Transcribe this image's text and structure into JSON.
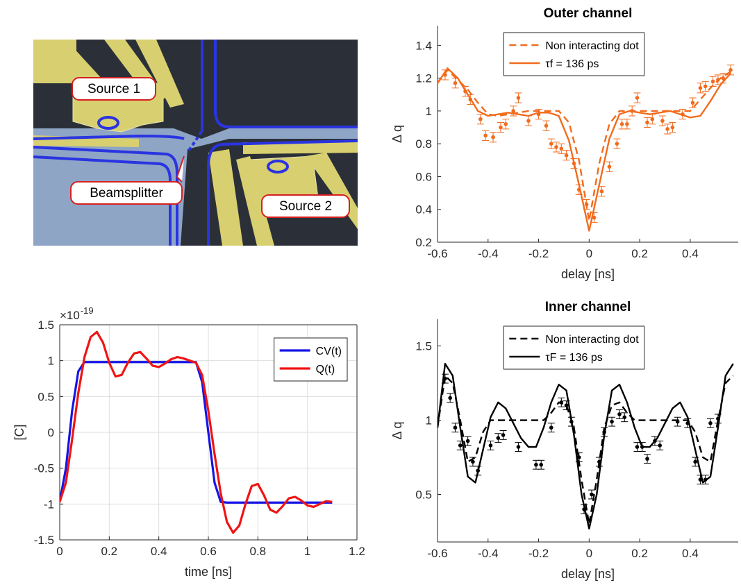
{
  "micrograph": {
    "labels": [
      "Source 1",
      "Beamsplitter",
      "Source 2"
    ]
  },
  "chart_data": [
    {
      "type": "line",
      "title": "Outer channel",
      "xlabel": "delay [ns]",
      "ylabel": "Δ q",
      "xlim": [
        -0.6,
        0.59
      ],
      "ylim": [
        0.2,
        1.52
      ],
      "xticks": [
        -0.6,
        -0.4,
        -0.2,
        0,
        0.2,
        0.4
      ],
      "yticks": [
        0.2,
        0.4,
        0.6,
        0.8,
        1,
        1.2,
        1.4
      ],
      "grid": false,
      "box": false,
      "legend_position": "north",
      "x": [
        -0.6,
        -0.56,
        -0.52,
        -0.48,
        -0.44,
        -0.4,
        -0.36,
        -0.32,
        -0.28,
        -0.24,
        -0.2,
        -0.16,
        -0.12,
        -0.08,
        -0.04,
        0,
        0.04,
        0.08,
        0.12,
        0.16,
        0.2,
        0.24,
        0.28,
        0.32,
        0.36,
        0.4,
        0.44,
        0.48,
        0.52,
        0.56
      ],
      "series": [
        {
          "name": "Non interacting dot",
          "color": "#f26b1d",
          "style": "dashed",
          "values": [
            1.17,
            1.25,
            1.19,
            1.13,
            1.05,
            0.98,
            0.97,
            0.98,
            0.99,
            1.0,
            1.0,
            1.0,
            1.0,
            0.93,
            0.7,
            0.33,
            0.68,
            0.92,
            1.0,
            1.0,
            1.0,
            1.0,
            1.0,
            1.0,
            1.0,
            1.0,
            1.07,
            1.14,
            1.2,
            1.24
          ]
        },
        {
          "name": "τf = 136 ps",
          "color": "#f26b1d",
          "style": "solid",
          "values": [
            1.17,
            1.26,
            1.2,
            1.1,
            1.0,
            0.97,
            0.98,
            0.99,
            0.98,
            0.97,
            0.99,
            0.99,
            0.97,
            0.82,
            0.55,
            0.27,
            0.55,
            0.83,
            0.98,
            1.0,
            0.99,
            0.98,
            0.99,
            1.0,
            0.98,
            0.96,
            0.97,
            1.06,
            1.16,
            1.23
          ]
        }
      ],
      "points": {
        "color": "#f26b1d",
        "error": 0.03,
        "x": [
          -0.57,
          -0.53,
          -0.49,
          -0.47,
          -0.43,
          -0.41,
          -0.38,
          -0.35,
          -0.33,
          -0.3,
          -0.28,
          -0.24,
          -0.2,
          -0.17,
          -0.15,
          -0.13,
          -0.11,
          -0.09,
          -0.06,
          -0.04,
          -0.01,
          0.02,
          0.05,
          0.08,
          0.11,
          0.13,
          0.15,
          0.17,
          0.19,
          0.23,
          0.25,
          0.29,
          0.31,
          0.33,
          0.37,
          0.41,
          0.44,
          0.46,
          0.49,
          0.51,
          0.53,
          0.56
        ],
        "values": [
          1.22,
          1.17,
          1.12,
          1.07,
          0.95,
          0.85,
          0.84,
          0.9,
          0.92,
          1.0,
          1.08,
          0.94,
          0.98,
          0.91,
          0.8,
          0.78,
          0.77,
          0.73,
          0.68,
          0.52,
          0.43,
          0.35,
          0.51,
          0.66,
          0.8,
          0.92,
          0.92,
          1.0,
          1.08,
          0.93,
          0.95,
          0.94,
          0.89,
          0.9,
          0.98,
          1.05,
          1.14,
          1.15,
          1.18,
          1.19,
          1.2,
          1.25
        ]
      }
    },
    {
      "type": "line",
      "title": "Inner channel",
      "xlabel": "delay [ns]",
      "ylabel": "Δ q",
      "xlim": [
        -0.6,
        0.59
      ],
      "ylim": [
        0.18,
        1.68
      ],
      "xticks": [
        -0.6,
        -0.4,
        -0.2,
        0,
        0.2,
        0.4
      ],
      "yticks": [
        0.5,
        1,
        1.5
      ],
      "grid": false,
      "box": false,
      "legend_position": "north",
      "x": [
        -0.6,
        -0.57,
        -0.54,
        -0.51,
        -0.48,
        -0.45,
        -0.42,
        -0.39,
        -0.36,
        -0.33,
        -0.3,
        -0.27,
        -0.24,
        -0.21,
        -0.18,
        -0.15,
        -0.12,
        -0.09,
        -0.06,
        -0.03,
        0,
        0.03,
        0.06,
        0.09,
        0.12,
        0.15,
        0.18,
        0.21,
        0.24,
        0.27,
        0.3,
        0.33,
        0.36,
        0.39,
        0.42,
        0.45,
        0.48,
        0.51,
        0.54,
        0.57
      ],
      "series": [
        {
          "name": "Non interacting dot",
          "color": "#000000",
          "style": "dashed",
          "values": [
            0.95,
            1.3,
            1.25,
            1.0,
            0.72,
            0.75,
            0.92,
            1.0,
            1.0,
            1.0,
            1.0,
            1.0,
            1.0,
            1.0,
            1.0,
            1.05,
            1.12,
            1.1,
            0.95,
            0.6,
            0.3,
            0.6,
            0.95,
            1.1,
            1.12,
            1.05,
            1.0,
            1.0,
            1.0,
            1.0,
            1.0,
            1.0,
            1.0,
            1.0,
            0.92,
            0.75,
            0.72,
            1.0,
            1.25,
            1.3
          ]
        },
        {
          "name": "τF = 136 ps",
          "color": "#000000",
          "style": "solid",
          "values": [
            0.95,
            1.38,
            1.3,
            0.95,
            0.62,
            0.58,
            0.8,
            1.02,
            1.12,
            1.08,
            0.98,
            0.88,
            0.82,
            0.82,
            0.95,
            1.12,
            1.24,
            1.2,
            0.9,
            0.5,
            0.27,
            0.5,
            0.9,
            1.2,
            1.24,
            1.12,
            0.95,
            0.82,
            0.82,
            0.88,
            0.98,
            1.08,
            1.12,
            1.02,
            0.8,
            0.58,
            0.62,
            0.95,
            1.3,
            1.38
          ]
        }
      ],
      "points": {
        "color": "#000000",
        "error": 0.03,
        "x": [
          -0.57,
          -0.55,
          -0.53,
          -0.51,
          -0.48,
          -0.46,
          -0.44,
          -0.39,
          -0.36,
          -0.34,
          -0.28,
          -0.21,
          -0.19,
          -0.15,
          -0.11,
          -0.09,
          -0.07,
          -0.04,
          -0.02,
          0.01,
          0.04,
          0.06,
          0.09,
          0.12,
          0.14,
          0.19,
          0.21,
          0.23,
          0.26,
          0.28,
          0.35,
          0.39,
          0.42,
          0.44,
          0.46,
          0.48,
          0.51
        ],
        "values": [
          1.28,
          1.15,
          0.95,
          0.83,
          0.86,
          0.72,
          0.66,
          0.83,
          0.88,
          0.9,
          0.82,
          0.7,
          0.7,
          0.95,
          1.12,
          1.1,
          0.99,
          0.75,
          0.4,
          0.5,
          0.72,
          0.92,
          0.99,
          1.04,
          1.02,
          0.82,
          0.82,
          0.74,
          0.86,
          0.83,
          0.99,
          0.98,
          0.72,
          0.6,
          0.6,
          0.98,
          1.01
        ]
      }
    },
    {
      "type": "line",
      "xlabel": "time [ns]",
      "ylabel": "[C]",
      "y_multiplier": "×10",
      "y_multiplier_exponent": "-19",
      "xlim": [
        0,
        1.2
      ],
      "ylim": [
        -1.5,
        1.5
      ],
      "xticks": [
        0,
        0.2,
        0.4,
        0.6,
        0.8,
        1,
        1.2
      ],
      "yticks": [
        -1.5,
        -1,
        -0.5,
        0,
        0.5,
        1,
        1.5
      ],
      "grid": true,
      "box": true,
      "legend_position": "northeast",
      "x": [
        0,
        0.025,
        0.05,
        0.075,
        0.1,
        0.125,
        0.15,
        0.175,
        0.2,
        0.225,
        0.25,
        0.275,
        0.3,
        0.325,
        0.35,
        0.375,
        0.4,
        0.425,
        0.45,
        0.475,
        0.5,
        0.525,
        0.55,
        0.575,
        0.6,
        0.625,
        0.65,
        0.675,
        0.7,
        0.725,
        0.75,
        0.775,
        0.8,
        0.825,
        0.85,
        0.875,
        0.9,
        0.925,
        0.95,
        0.975,
        1.0,
        1.025,
        1.05,
        1.075,
        1.1
      ],
      "series": [
        {
          "name": "CV(t)",
          "color": "#1515e6",
          "style": "solid",
          "values": [
            -0.97,
            -0.5,
            0.3,
            0.85,
            0.98,
            0.98,
            0.98,
            0.98,
            0.98,
            0.98,
            0.98,
            0.98,
            0.98,
            0.98,
            0.98,
            0.98,
            0.98,
            0.98,
            0.98,
            0.98,
            0.98,
            0.98,
            0.98,
            0.7,
            0,
            -0.7,
            -0.97,
            -0.98,
            -0.98,
            -0.98,
            -0.98,
            -0.98,
            -0.98,
            -0.98,
            -0.98,
            -0.98,
            -0.98,
            -0.98,
            -0.98,
            -0.98,
            -0.98,
            -0.98,
            -0.98,
            -0.98,
            -0.98
          ]
        },
        {
          "name": "Q(t)",
          "color": "#f01414",
          "style": "solid",
          "values": [
            -0.97,
            -0.7,
            -0.1,
            0.55,
            1.05,
            1.33,
            1.4,
            1.25,
            0.97,
            0.78,
            0.8,
            0.97,
            1.1,
            1.12,
            1.03,
            0.93,
            0.91,
            0.96,
            1.02,
            1.05,
            1.03,
            1.0,
            0.97,
            0.8,
            0.3,
            -0.3,
            -0.85,
            -1.25,
            -1.4,
            -1.3,
            -1.0,
            -0.75,
            -0.72,
            -0.88,
            -1.08,
            -1.12,
            -1.03,
            -0.92,
            -0.9,
            -0.95,
            -1.02,
            -1.04,
            -1.0,
            -0.96,
            -0.97
          ]
        }
      ]
    }
  ]
}
